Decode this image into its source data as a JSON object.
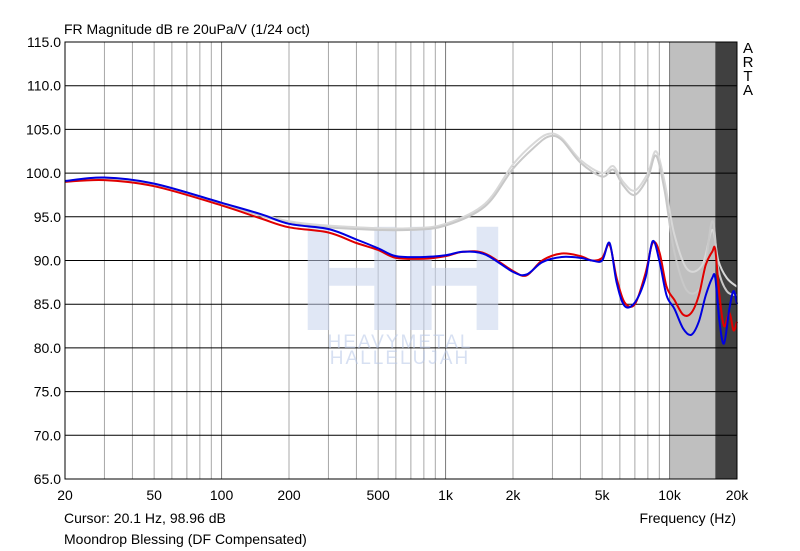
{
  "header": {
    "title": "FR Magnitude dB re 20uPa/V (1/24 oct)"
  },
  "footer": {
    "cursor": "Cursor: 20.1 Hz, 98.96 dB",
    "caption": "Moondrop Blessing  (DF Compensated)"
  },
  "brand": [
    "A",
    "R",
    "T",
    "A"
  ],
  "watermark": {
    "monogram": "HH",
    "line1": "HEAVYMETAL",
    "line2": "HALLELUJAH",
    "color": "#b8c8e8"
  },
  "chart_data": {
    "type": "line",
    "title": "FR Magnitude dB re 20uPa/V (1/24 oct)",
    "xlabel": "Frequency (Hz)",
    "ylabel": "",
    "xscale": "log",
    "xlim": [
      20,
      20000
    ],
    "ylim": [
      65,
      115
    ],
    "xticks": [
      {
        "value": 20,
        "label": "20"
      },
      {
        "value": 50,
        "label": "50"
      },
      {
        "value": 100,
        "label": "100"
      },
      {
        "value": 200,
        "label": "200"
      },
      {
        "value": 500,
        "label": "500"
      },
      {
        "value": 1000,
        "label": "1k"
      },
      {
        "value": 2000,
        "label": "2k"
      },
      {
        "value": 5000,
        "label": "5k"
      },
      {
        "value": 10000,
        "label": "10k"
      },
      {
        "value": 20000,
        "label": "20k"
      }
    ],
    "yticks": [
      {
        "value": 115,
        "label": "115.0"
      },
      {
        "value": 110,
        "label": "110.0"
      },
      {
        "value": 105,
        "label": "105.0"
      },
      {
        "value": 100,
        "label": "100.0"
      },
      {
        "value": 95,
        "label": "95.0"
      },
      {
        "value": 90,
        "label": "90.0"
      },
      {
        "value": 85,
        "label": "85.0"
      },
      {
        "value": 80,
        "label": "80.0"
      },
      {
        "value": 75,
        "label": "75.0"
      },
      {
        "value": 70,
        "label": "70.0"
      },
      {
        "value": 65,
        "label": "65.0"
      }
    ],
    "grid": true,
    "shaded_regions": [
      {
        "x": [
          10000,
          16000
        ],
        "color": "#bfbfbf"
      },
      {
        "x": [
          16000,
          20000
        ],
        "color": "#404040"
      }
    ],
    "series": [
      {
        "color": "#d8d8d8",
        "x": [
          20,
          30,
          50,
          100,
          200,
          400,
          700,
          1000,
          1500,
          2000,
          2500,
          2900,
          3300,
          4000,
          5000,
          5600,
          6200,
          7000,
          8000,
          8700,
          9500,
          10500,
          12000,
          14000,
          15500,
          16500,
          18000,
          20000
        ],
        "y": [
          99.0,
          99.4,
          98.8,
          96.6,
          94.5,
          93.8,
          93.7,
          94.2,
          96.5,
          101.0,
          103.5,
          104.5,
          104.0,
          101.5,
          100.0,
          100.8,
          99.0,
          98.0,
          100.0,
          102.5,
          99.0,
          93.0,
          89.0,
          89.5,
          93.5,
          90.0,
          88.0,
          87.0
        ]
      },
      {
        "color": "#c8c8c8",
        "x": [
          20,
          30,
          50,
          100,
          200,
          400,
          700,
          1000,
          1500,
          2000,
          2500,
          2900,
          3300,
          4000,
          5000,
          5600,
          6200,
          7000,
          8000,
          8700,
          9500,
          10500,
          12000,
          14000,
          15500,
          16500,
          18000,
          20000
        ],
        "y": [
          99.0,
          99.3,
          98.7,
          96.5,
          94.3,
          93.6,
          93.5,
          94.0,
          96.2,
          100.5,
          103.0,
          104.2,
          103.8,
          101.2,
          99.6,
          100.4,
          98.6,
          97.5,
          99.5,
          102.0,
          98.0,
          91.0,
          86.5,
          87.5,
          94.5,
          89.0,
          86.5,
          86.0
        ]
      },
      {
        "color": "#e00000",
        "x": [
          20,
          30,
          50,
          100,
          150,
          200,
          300,
          400,
          500,
          600,
          800,
          1000,
          1200,
          1500,
          2000,
          2300,
          2700,
          3300,
          4000,
          4500,
          5000,
          5400,
          5800,
          6300,
          7000,
          7800,
          8400,
          9000,
          9700,
          10500,
          11500,
          12500,
          13500,
          14500,
          15500,
          16000,
          16700,
          17500,
          18500,
          19300,
          20000
        ],
        "y": [
          99.0,
          99.2,
          98.5,
          96.3,
          94.8,
          93.8,
          93.2,
          92.0,
          91.2,
          90.3,
          90.2,
          90.5,
          91.0,
          90.8,
          88.8,
          88.3,
          90.0,
          90.8,
          90.5,
          90.0,
          90.3,
          91.8,
          88.0,
          85.2,
          85.0,
          88.5,
          92.0,
          91.0,
          87.0,
          85.5,
          83.8,
          84.0,
          86.0,
          89.5,
          91.0,
          91.2,
          86.0,
          82.5,
          84.0,
          82.0,
          83.0
        ]
      },
      {
        "color": "#0000e0",
        "x": [
          20,
          30,
          50,
          100,
          150,
          200,
          300,
          400,
          500,
          600,
          800,
          1000,
          1200,
          1500,
          2000,
          2300,
          2700,
          3300,
          4000,
          4500,
          5000,
          5400,
          5800,
          6300,
          7000,
          7800,
          8400,
          9000,
          9700,
          10500,
          11500,
          12500,
          13500,
          14500,
          15500,
          16000,
          16700,
          17500,
          18500,
          19300,
          20000
        ],
        "y": [
          99.1,
          99.5,
          98.8,
          96.6,
          95.3,
          94.2,
          93.6,
          92.4,
          91.4,
          90.5,
          90.4,
          90.6,
          91.0,
          90.7,
          88.7,
          88.4,
          89.8,
          90.4,
          90.3,
          90.0,
          90.0,
          92.0,
          87.5,
          84.8,
          85.2,
          88.0,
          92.2,
          90.0,
          86.0,
          84.5,
          82.2,
          81.5,
          83.0,
          86.0,
          88.0,
          88.0,
          83.0,
          80.5,
          84.5,
          86.5,
          85.0
        ]
      }
    ]
  }
}
